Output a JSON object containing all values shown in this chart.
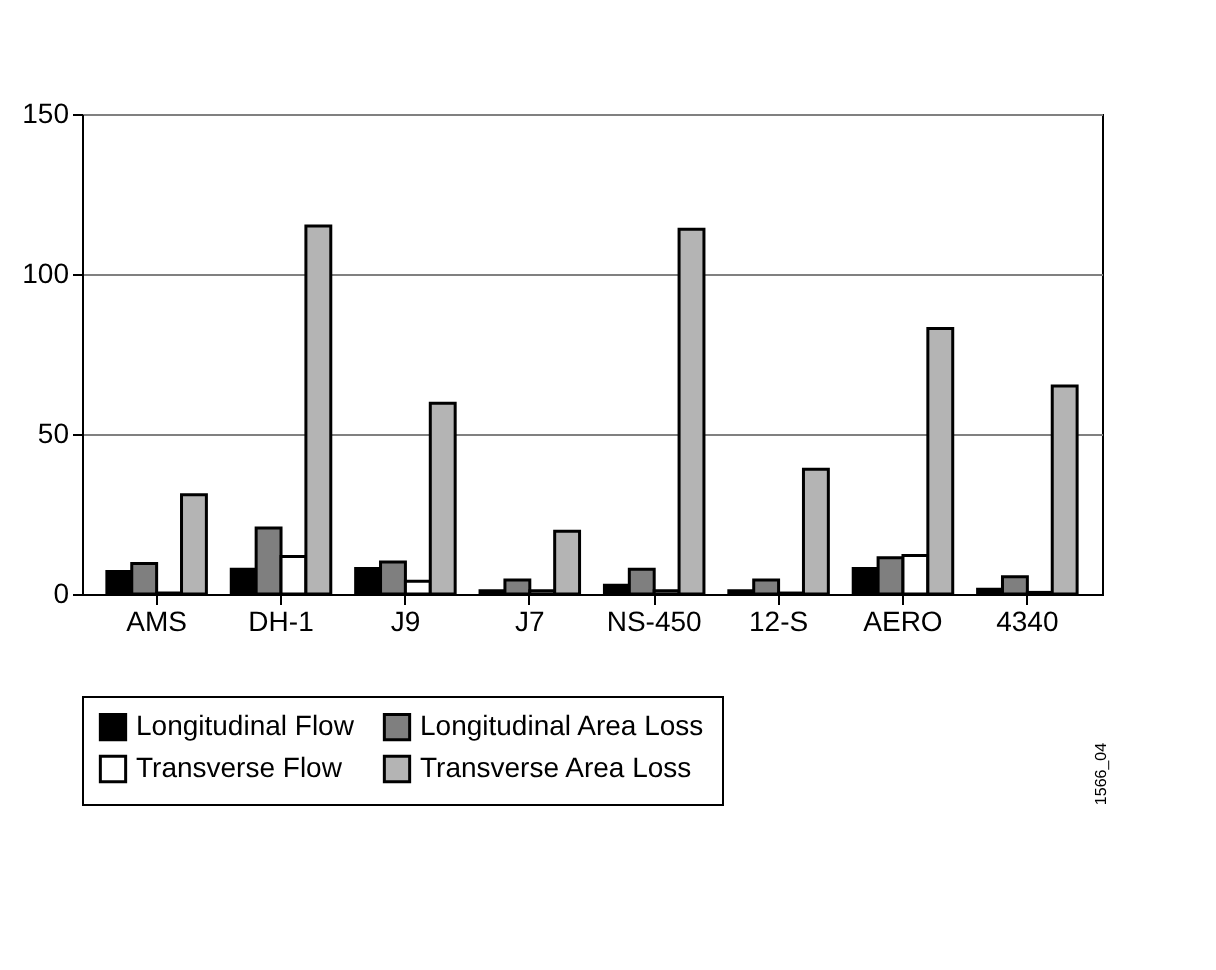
{
  "chart_data": {
    "type": "bar",
    "categories": [
      "AMS",
      "DH-1",
      "J9",
      "J7",
      "NS-450",
      "12-S",
      "AERO",
      "4340"
    ],
    "series": [
      {
        "name": "Longitudinal Flow",
        "color": "#000000",
        "values": [
          7,
          7.7,
          8,
          1,
          2.7,
          1,
          8,
          1.5
        ]
      },
      {
        "name": "Longitudinal Area Loss",
        "color": "#7f7f7f",
        "values": [
          9.5,
          20.6,
          10,
          4.4,
          7.7,
          4.4,
          11.3,
          5.4
        ]
      },
      {
        "name": "Transverse Flow",
        "color": "#ffffff",
        "values": [
          0.3,
          11.7,
          4,
          1,
          1,
          0.3,
          12,
          0.5
        ]
      },
      {
        "name": "Transverse Area Loss",
        "color": "#b4b4b4",
        "values": [
          31,
          115,
          59.6,
          19.6,
          114,
          39,
          83,
          65
        ]
      }
    ],
    "ylim": [
      0,
      150
    ],
    "yticks": [
      0,
      50,
      100,
      150
    ],
    "grid": "y",
    "legend": "bottom",
    "annotations": [
      "1566_04"
    ]
  }
}
